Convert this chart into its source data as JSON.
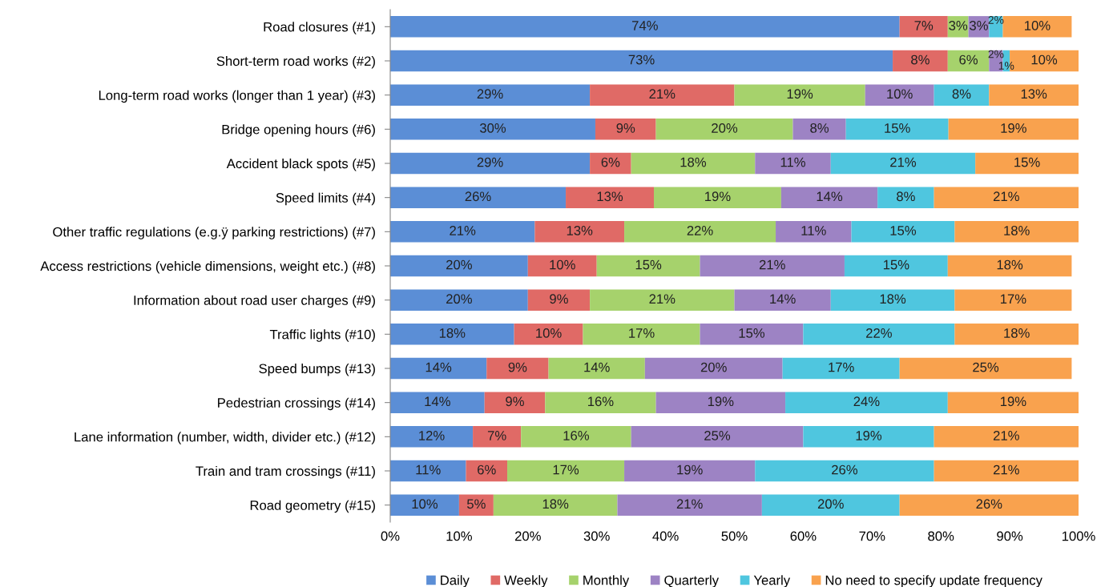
{
  "chart_data": {
    "type": "bar",
    "orientation": "horizontal",
    "stacked": true,
    "categories": [
      "Road closures (#1)",
      "Short-term road works (#2)",
      "Long-term road works (longer than 1 year) (#3)",
      "Bridge opening hours (#6)",
      "Accident black spots (#5)",
      "Speed limits (#4)",
      "Other traffic regulations (e.g.ÿ parking restrictions) (#7)",
      "Access restrictions (vehicle dimensions, weight etc.) (#8)",
      "Information about road user charges (#9)",
      "Traffic lights (#10)",
      "Speed bumps (#13)",
      "Pedestrian crossings (#14)",
      "Lane information (number, width, divider etc.) (#12)",
      "Train and tram crossings (#11)",
      "Road geometry (#15)"
    ],
    "series": [
      {
        "name": "Daily",
        "color": "#5b8ed6",
        "values": [
          74,
          73,
          29,
          29.8,
          29,
          25.5,
          21,
          20,
          20,
          18,
          14,
          13.7,
          12,
          11,
          10
        ],
        "value_labels": [
          "74%",
          "73%",
          "29%",
          "30%",
          "29%",
          "26%",
          "21%",
          "20%",
          "20%",
          "18%",
          "14%",
          "14%",
          "12%",
          "11%",
          "10%"
        ]
      },
      {
        "name": "Weekly",
        "color": "#e06a66",
        "values": [
          7,
          8,
          21,
          8.8,
          6,
          12.8,
          13,
          10,
          9,
          10,
          9,
          8.8,
          7,
          6,
          5
        ],
        "value_labels": [
          "7%",
          "8%",
          "21%",
          "9%",
          "6%",
          "13%",
          "13%",
          "10%",
          "9%",
          "10%",
          "9%",
          "9%",
          "7%",
          "6%",
          "5%"
        ]
      },
      {
        "name": "Monthly",
        "color": "#a6d26c",
        "values": [
          3,
          6,
          19,
          19.9,
          18,
          18.5,
          22,
          15,
          21,
          17,
          14,
          16.1,
          16,
          17,
          18
        ],
        "value_labels": [
          "3%",
          "6%",
          "19%",
          "20%",
          "18%",
          "19%",
          "22%",
          "15%",
          "21%",
          "17%",
          "14%",
          "16%",
          "16%",
          "17%",
          "18%"
        ]
      },
      {
        "name": "Quarterly",
        "color": "#9d83c4",
        "values": [
          3,
          2,
          10,
          7.7,
          11,
          14,
          11,
          21,
          14,
          15,
          20,
          18.8,
          25,
          19,
          21
        ],
        "value_labels": [
          "3%",
          "2%",
          "10%",
          "8%",
          "11%",
          "14%",
          "11%",
          "21%",
          "14%",
          "15%",
          "20%",
          "19%",
          "25%",
          "19%",
          "21%"
        ]
      },
      {
        "name": "Yearly",
        "color": "#4fc6df",
        "values": [
          2,
          1,
          8,
          14.9,
          21,
          8.2,
          15,
          15,
          18,
          22,
          17,
          23.6,
          19,
          26,
          20
        ],
        "value_labels": [
          "2%",
          "1%",
          "8%",
          "15%",
          "21%",
          "8%",
          "15%",
          "15%",
          "18%",
          "22%",
          "17%",
          "24%",
          "19%",
          "26%",
          "20%"
        ]
      },
      {
        "name": "No need to specify update frequency",
        "color": "#f9a24e",
        "values": [
          10,
          10,
          13,
          18.9,
          15,
          21,
          18,
          18,
          17,
          18,
          25,
          19,
          21,
          21,
          26
        ],
        "value_labels": [
          "10%",
          "10%",
          "13%",
          "19%",
          "15%",
          "21%",
          "18%",
          "18%",
          "17%",
          "18%",
          "25%",
          "19%",
          "21%",
          "21%",
          "26%"
        ]
      }
    ],
    "xlim": [
      0,
      100
    ],
    "xticks": [
      {
        "value": 0,
        "label": "0%"
      },
      {
        "value": 10,
        "label": "10%"
      },
      {
        "value": 20,
        "label": "20%"
      },
      {
        "value": 30,
        "label": "30%"
      },
      {
        "value": 40,
        "label": "40%"
      },
      {
        "value": 50,
        "label": "50%"
      },
      {
        "value": 60,
        "label": "60%"
      },
      {
        "value": 70,
        "label": "70%"
      },
      {
        "value": 80,
        "label": "80%"
      },
      {
        "value": 90,
        "label": "90%"
      },
      {
        "value": 100,
        "label": "100%"
      }
    ],
    "grid": false,
    "legend": "bottom"
  }
}
